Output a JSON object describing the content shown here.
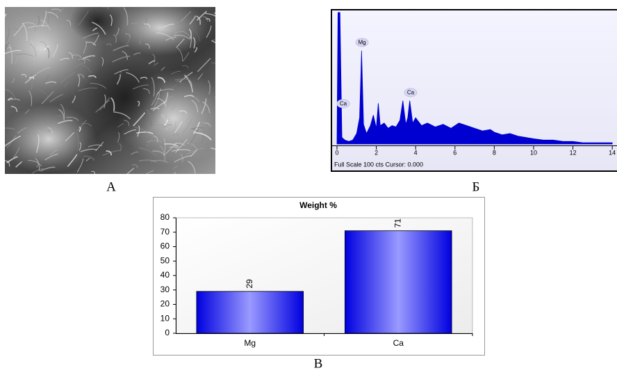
{
  "captions": [
    "А",
    "Б",
    "В"
  ],
  "chart_data": [
    {
      "type": "area",
      "x": [
        0,
        0.05,
        0.15,
        0.25,
        0.4,
        0.6,
        0.8,
        1.0,
        1.15,
        1.25,
        1.35,
        1.5,
        1.7,
        1.85,
        2.0,
        2.1,
        2.2,
        2.4,
        2.6,
        2.8,
        3.0,
        3.2,
        3.35,
        3.5,
        3.6,
        3.7,
        3.85,
        4.0,
        4.3,
        4.6,
        5.0,
        5.4,
        5.8,
        6.2,
        6.6,
        7.0,
        7.4,
        7.8,
        8.0,
        8.4,
        8.8,
        9.2,
        9.6,
        10.0,
        10.5,
        11.0,
        11.5,
        12.0,
        12.5,
        13.0,
        13.5,
        14.0
      ],
      "values": [
        0,
        100,
        100,
        5,
        3,
        2,
        3,
        8,
        20,
        71,
        15,
        8,
        14,
        22,
        12,
        31,
        14,
        16,
        12,
        14,
        13,
        18,
        33,
        15,
        20,
        33,
        16,
        20,
        14,
        16,
        13,
        15,
        12,
        16,
        14,
        12,
        10,
        11,
        9,
        7,
        8,
        6,
        5,
        4,
        3,
        3,
        2,
        2,
        1,
        1,
        1,
        1
      ],
      "color": "#0000d0",
      "xlim": [
        0,
        14.1
      ],
      "ylim": [
        0,
        100
      ],
      "xticks": [
        0,
        2,
        4,
        6,
        8,
        10,
        12,
        14
      ],
      "annotations": [
        "Mg",
        "Ca",
        "Ca"
      ],
      "status": "Full Scale 100 cts Cursor: 0.000"
    },
    {
      "type": "bar",
      "title": "Weight %",
      "categories": [
        "Mg",
        "Ca"
      ],
      "values": [
        29,
        71
      ],
      "value_labels": [
        "29",
        "71"
      ],
      "color": "#1a1aff",
      "ylim": [
        0,
        80
      ],
      "yticks": [
        0,
        10,
        20,
        30,
        40,
        50,
        60,
        70,
        80
      ]
    }
  ]
}
